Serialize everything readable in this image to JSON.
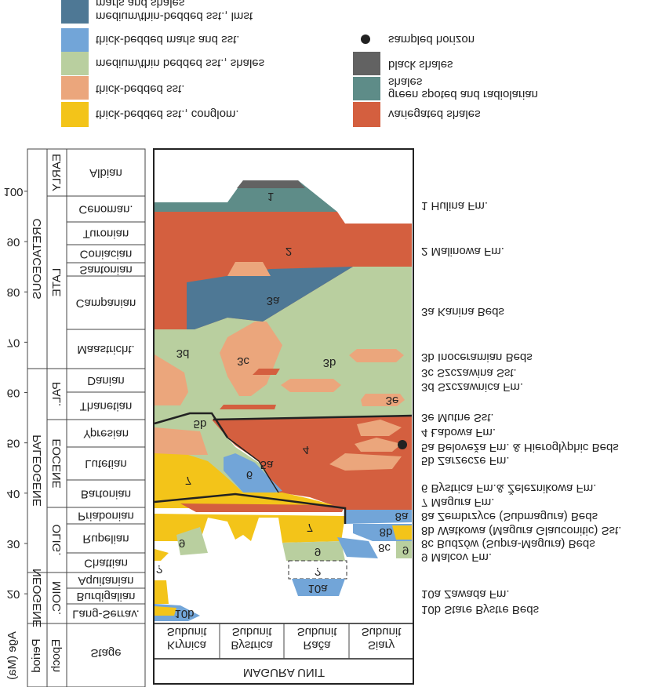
{
  "legend": {
    "left": [
      {
        "lines": [
          "medium/thin-bedded sst., lmst",
          "marls and shales"
        ]
      },
      {
        "lines": [
          "thick-bedded marls and sst."
        ]
      },
      {
        "lines": [
          "medium/thin bedded sst., shales"
        ]
      },
      {
        "lines": [
          "thick-bedded sst."
        ]
      },
      {
        "lines": [
          "thick-bedded sst., conglom."
        ]
      }
    ],
    "right": [
      {
        "lines": [
          "sampled horizon"
        ]
      },
      {
        "lines": [
          "black shales"
        ]
      },
      {
        "lines": [
          "green spoted and radiolarian",
          "shales"
        ]
      },
      {
        "lines": [
          "variegated shales"
        ]
      }
    ]
  },
  "header": {
    "title": "MAGURA UNIT",
    "subunits": [
      {
        "name": "Krynica",
        "label": "Subunit"
      },
      {
        "name": "Bystrica",
        "label": "Subunit"
      },
      {
        "name": "Rača",
        "label": "Subunit"
      },
      {
        "name": "Siary",
        "label": "Subunit"
      }
    ]
  },
  "column_headers": {
    "age": "Age (Ma)",
    "period": "Period",
    "epoch": "Epoch",
    "stage": "Stage"
  },
  "age_axis": {
    "ylim": [
      14.1,
      108.4
    ],
    "yticks": [
      20,
      30,
      40,
      50,
      60,
      70,
      80,
      90,
      100
    ]
  },
  "periods": [
    "CRETACEOUS",
    "PALEOGENE",
    "NEOGENE"
  ],
  "epochs": [
    "EARLY",
    "LATE",
    "PAL.",
    "EOCENE",
    "OLIG.",
    "MIOC."
  ],
  "stages": [
    "Albian",
    "Cenoman.",
    "Turonian",
    "Coniacian",
    "Santonian",
    "Campanian",
    "Maastricht.",
    "Danian",
    "Thanetian",
    "Ypresian",
    "Lutetian",
    "Bartonian",
    "Priabonian",
    "Rupelian",
    "Chattian",
    "Aquitanian",
    "Burdigalian",
    "Lang-Serrav."
  ],
  "unit_labels": [
    "1",
    "2",
    "3a",
    "3b",
    "3c",
    "3d",
    "3e",
    "4",
    "5a",
    "5b",
    "6",
    "7",
    "7",
    "8a",
    "8b",
    "8c",
    "9",
    "9",
    "9",
    "?",
    "?",
    "10a",
    "10b"
  ],
  "formations": [
    "1  Hulina Fm.",
    "2  Malinowa Fm.",
    "3a Kanina Beds",
    "3b Inoceramian Beds",
    "3c Szczawina Sst.",
    "3d Szczawnica Fm.",
    "3e Mutne Sst.",
    "4  Łabowa Fm.",
    "5a Beloveža Fm. & Hieroglyphic Beds",
    "5b Zarzecze Fm.",
    "6  Bystrica Fm.& Železnikowa Fm.",
    "7  Magura Fm.",
    "8a Zembrzyce (Submagura) Beds",
    "8b Watkowa (Magura Glauconitic) Sst.",
    "8c Budzów (Supra-Magura) Beds",
    "9  Malcov Fm.",
    "10a Zawada Fm.",
    "10b Stare Bystre Beds"
  ]
}
